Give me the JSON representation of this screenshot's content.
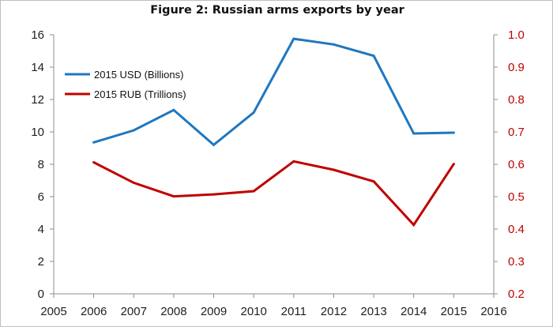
{
  "chart_data": {
    "type": "line",
    "title": "Figure 2: Russian arms exports by year",
    "xlabel": "",
    "ylabel": "",
    "x": [
      2006,
      2007,
      2008,
      2009,
      2010,
      2011,
      2012,
      2013,
      2014,
      2015
    ],
    "xlim": [
      2005,
      2016
    ],
    "x_ticks": [
      "2005",
      "2006",
      "2007",
      "2008",
      "2009",
      "2010",
      "2011",
      "2012",
      "2013",
      "2014",
      "2015",
      "2016"
    ],
    "y_left": {
      "lim": [
        0,
        16
      ],
      "ticks": [
        "0",
        "2",
        "4",
        "6",
        "8",
        "10",
        "12",
        "14",
        "16"
      ]
    },
    "y_right": {
      "lim": [
        0.2,
        1.0
      ],
      "ticks": [
        "0.2",
        "0.3",
        "0.4",
        "0.5",
        "0.6",
        "0.7",
        "0.8",
        "0.9",
        "1.0"
      ]
    },
    "series": [
      {
        "name": "2015 USD (Billions)",
        "axis": "left",
        "color": "#1f77c0",
        "values": [
          9.35,
          10.1,
          11.35,
          9.2,
          11.2,
          15.75,
          15.4,
          14.7,
          9.9,
          9.95
        ]
      },
      {
        "name": "2015 RUB (Trillions)",
        "axis": "right",
        "color": "#c00000",
        "values": [
          0.606,
          0.543,
          0.501,
          0.507,
          0.517,
          0.609,
          0.583,
          0.547,
          0.413,
          0.601
        ]
      }
    ],
    "legend_position": "top-left",
    "grid": false
  }
}
